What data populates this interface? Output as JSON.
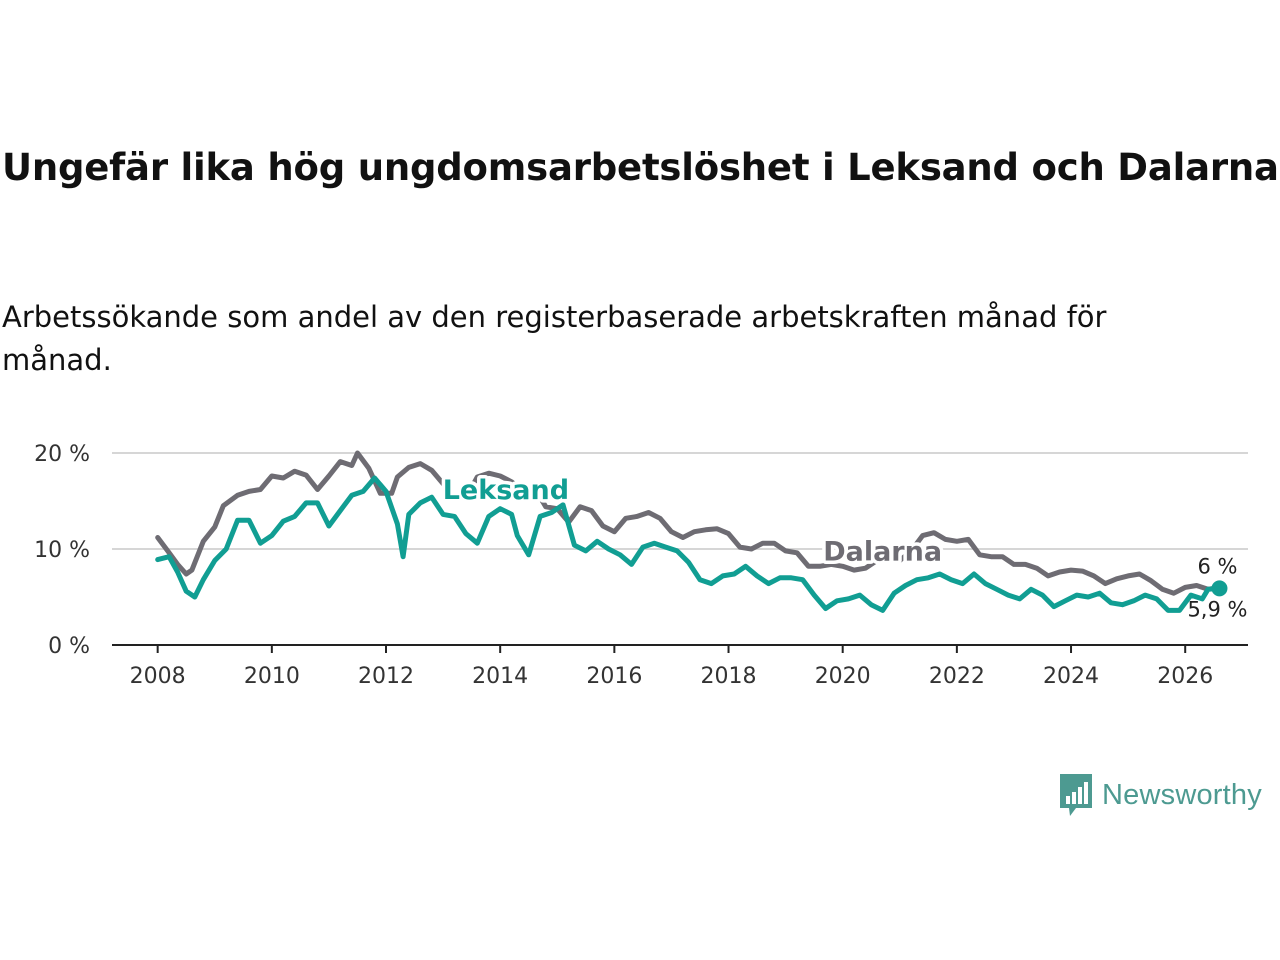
{
  "header": {
    "title": "Ungefär lika hög ungdomsarbetslöshet i Leksand och Dalarna",
    "subtitle": "Arbetssökande som andel av den registerbaserade arbetskraften månad för månad."
  },
  "brand": {
    "name": "Newsworthy",
    "color": "#4d9a91",
    "icon": "newsworthy-logo-icon"
  },
  "chart_data": {
    "type": "line",
    "title": "Ungefär lika hög ungdomsarbetslöshet i Leksand och Dalarna",
    "xlabel": "",
    "ylabel": "",
    "xlim": [
      2007.2,
      2027.1
    ],
    "ylim": [
      0,
      20
    ],
    "xticks": [
      2008,
      2010,
      2012,
      2014,
      2016,
      2018,
      2020,
      2022,
      2024,
      2026
    ],
    "xtick_labels": [
      "2008",
      "2010",
      "2012",
      "2014",
      "2016",
      "2018",
      "2020",
      "2022",
      "2024",
      "2026"
    ],
    "yticks": [
      0,
      10,
      20
    ],
    "ytick_labels": [
      "0 %",
      "10 %",
      "20 %"
    ],
    "grid": true,
    "series": [
      {
        "name": "Dalarna",
        "color": "#6e6c73",
        "end_label": "6 %",
        "points": [
          [
            2008.0,
            11.2
          ],
          [
            2008.2,
            9.6
          ],
          [
            2008.35,
            8.4
          ],
          [
            2008.5,
            7.4
          ],
          [
            2008.6,
            7.8
          ],
          [
            2008.8,
            10.8
          ],
          [
            2009.0,
            12.3
          ],
          [
            2009.15,
            14.5
          ],
          [
            2009.4,
            15.6
          ],
          [
            2009.6,
            16.0
          ],
          [
            2009.8,
            16.2
          ],
          [
            2010.0,
            17.6
          ],
          [
            2010.2,
            17.4
          ],
          [
            2010.4,
            18.1
          ],
          [
            2010.6,
            17.7
          ],
          [
            2010.8,
            16.2
          ],
          [
            2011.0,
            17.6
          ],
          [
            2011.2,
            19.1
          ],
          [
            2011.4,
            18.7
          ],
          [
            2011.5,
            20.0
          ],
          [
            2011.7,
            18.4
          ],
          [
            2011.9,
            15.8
          ],
          [
            2012.1,
            15.8
          ],
          [
            2012.2,
            17.5
          ],
          [
            2012.4,
            18.5
          ],
          [
            2012.6,
            18.9
          ],
          [
            2012.8,
            18.2
          ],
          [
            2013.0,
            16.8
          ],
          [
            2013.2,
            15.4
          ],
          [
            2013.4,
            15.3
          ],
          [
            2013.6,
            17.5
          ],
          [
            2013.8,
            17.9
          ],
          [
            2014.0,
            17.6
          ],
          [
            2014.2,
            17.0
          ],
          [
            2014.4,
            16.0
          ],
          [
            2014.6,
            16.4
          ],
          [
            2014.8,
            14.4
          ],
          [
            2015.0,
            14.2
          ],
          [
            2015.2,
            12.8
          ],
          [
            2015.4,
            14.4
          ],
          [
            2015.6,
            14.0
          ],
          [
            2015.8,
            12.4
          ],
          [
            2016.0,
            11.8
          ],
          [
            2016.2,
            13.2
          ],
          [
            2016.4,
            13.4
          ],
          [
            2016.6,
            13.8
          ],
          [
            2016.8,
            13.2
          ],
          [
            2017.0,
            11.8
          ],
          [
            2017.2,
            11.2
          ],
          [
            2017.4,
            11.8
          ],
          [
            2017.6,
            12.0
          ],
          [
            2017.8,
            12.1
          ],
          [
            2018.0,
            11.6
          ],
          [
            2018.2,
            10.2
          ],
          [
            2018.4,
            10.0
          ],
          [
            2018.6,
            10.6
          ],
          [
            2018.8,
            10.6
          ],
          [
            2019.0,
            9.8
          ],
          [
            2019.2,
            9.6
          ],
          [
            2019.4,
            8.2
          ],
          [
            2019.6,
            8.2
          ],
          [
            2019.8,
            8.4
          ],
          [
            2020.0,
            8.2
          ],
          [
            2020.2,
            7.8
          ],
          [
            2020.4,
            8.0
          ],
          [
            2020.6,
            8.8
          ],
          [
            2020.8,
            9.2
          ],
          [
            2021.0,
            8.8
          ],
          [
            2021.2,
            9.8
          ],
          [
            2021.4,
            11.4
          ],
          [
            2021.6,
            11.7
          ],
          [
            2021.8,
            11.0
          ],
          [
            2022.0,
            10.8
          ],
          [
            2022.2,
            11.0
          ],
          [
            2022.4,
            9.4
          ],
          [
            2022.6,
            9.2
          ],
          [
            2022.8,
            9.2
          ],
          [
            2023.0,
            8.4
          ],
          [
            2023.2,
            8.4
          ],
          [
            2023.4,
            8.0
          ],
          [
            2023.6,
            7.2
          ],
          [
            2023.8,
            7.6
          ],
          [
            2024.0,
            7.8
          ],
          [
            2024.2,
            7.7
          ],
          [
            2024.4,
            7.2
          ],
          [
            2024.6,
            6.4
          ],
          [
            2024.8,
            6.9
          ],
          [
            2025.0,
            7.2
          ],
          [
            2025.2,
            7.4
          ],
          [
            2025.4,
            6.7
          ],
          [
            2025.6,
            5.8
          ],
          [
            2025.8,
            5.4
          ],
          [
            2026.0,
            6.0
          ],
          [
            2026.2,
            6.2
          ],
          [
            2026.4,
            5.8
          ],
          [
            2026.6,
            6.0
          ]
        ]
      },
      {
        "name": "Leksand",
        "color": "#119e93",
        "end_label": "5,9 %",
        "points": [
          [
            2008.0,
            8.9
          ],
          [
            2008.2,
            9.2
          ],
          [
            2008.35,
            7.6
          ],
          [
            2008.5,
            5.6
          ],
          [
            2008.65,
            5.0
          ],
          [
            2008.8,
            6.8
          ],
          [
            2009.0,
            8.8
          ],
          [
            2009.2,
            10.0
          ],
          [
            2009.4,
            13.0
          ],
          [
            2009.6,
            13.0
          ],
          [
            2009.8,
            10.6
          ],
          [
            2010.0,
            11.4
          ],
          [
            2010.2,
            12.9
          ],
          [
            2010.4,
            13.4
          ],
          [
            2010.6,
            14.8
          ],
          [
            2010.8,
            14.8
          ],
          [
            2011.0,
            12.4
          ],
          [
            2011.2,
            14.0
          ],
          [
            2011.4,
            15.6
          ],
          [
            2011.6,
            16.0
          ],
          [
            2011.8,
            17.4
          ],
          [
            2012.0,
            16.0
          ],
          [
            2012.2,
            12.6
          ],
          [
            2012.3,
            9.2
          ],
          [
            2012.4,
            13.6
          ],
          [
            2012.6,
            14.8
          ],
          [
            2012.8,
            15.4
          ],
          [
            2013.0,
            13.6
          ],
          [
            2013.2,
            13.4
          ],
          [
            2013.4,
            11.6
          ],
          [
            2013.6,
            10.6
          ],
          [
            2013.8,
            13.4
          ],
          [
            2014.0,
            14.2
          ],
          [
            2014.2,
            13.6
          ],
          [
            2014.3,
            11.4
          ],
          [
            2014.5,
            9.4
          ],
          [
            2014.7,
            13.4
          ],
          [
            2014.9,
            13.8
          ],
          [
            2015.1,
            14.6
          ],
          [
            2015.3,
            10.4
          ],
          [
            2015.5,
            9.8
          ],
          [
            2015.7,
            10.8
          ],
          [
            2015.9,
            10.0
          ],
          [
            2016.1,
            9.4
          ],
          [
            2016.3,
            8.4
          ],
          [
            2016.5,
            10.2
          ],
          [
            2016.7,
            10.6
          ],
          [
            2016.9,
            10.2
          ],
          [
            2017.1,
            9.8
          ],
          [
            2017.3,
            8.6
          ],
          [
            2017.5,
            6.8
          ],
          [
            2017.7,
            6.4
          ],
          [
            2017.9,
            7.2
          ],
          [
            2018.1,
            7.4
          ],
          [
            2018.3,
            8.2
          ],
          [
            2018.5,
            7.2
          ],
          [
            2018.7,
            6.4
          ],
          [
            2018.9,
            7.0
          ],
          [
            2019.1,
            7.0
          ],
          [
            2019.3,
            6.8
          ],
          [
            2019.5,
            5.2
          ],
          [
            2019.7,
            3.8
          ],
          [
            2019.9,
            4.6
          ],
          [
            2020.1,
            4.8
          ],
          [
            2020.3,
            5.2
          ],
          [
            2020.5,
            4.2
          ],
          [
            2020.7,
            3.6
          ],
          [
            2020.9,
            5.4
          ],
          [
            2021.1,
            6.2
          ],
          [
            2021.3,
            6.8
          ],
          [
            2021.5,
            7.0
          ],
          [
            2021.7,
            7.4
          ],
          [
            2021.9,
            6.8
          ],
          [
            2022.1,
            6.4
          ],
          [
            2022.3,
            7.4
          ],
          [
            2022.5,
            6.4
          ],
          [
            2022.7,
            5.8
          ],
          [
            2022.9,
            5.2
          ],
          [
            2023.1,
            4.8
          ],
          [
            2023.3,
            5.8
          ],
          [
            2023.5,
            5.2
          ],
          [
            2023.7,
            4.0
          ],
          [
            2023.9,
            4.6
          ],
          [
            2024.1,
            5.2
          ],
          [
            2024.3,
            5.0
          ],
          [
            2024.5,
            5.4
          ],
          [
            2024.7,
            4.4
          ],
          [
            2024.9,
            4.2
          ],
          [
            2025.1,
            4.6
          ],
          [
            2025.3,
            5.2
          ],
          [
            2025.5,
            4.8
          ],
          [
            2025.7,
            3.6
          ],
          [
            2025.9,
            3.6
          ],
          [
            2026.1,
            5.2
          ],
          [
            2026.3,
            4.8
          ],
          [
            2026.4,
            5.8
          ],
          [
            2026.6,
            5.9
          ]
        ]
      }
    ],
    "annotations": [
      {
        "text": "Leksand",
        "series": "Leksand",
        "at": [
          2014.1,
          15.2
        ]
      },
      {
        "text": "Dalarna",
        "series": "Dalarna",
        "at": [
          2020.7,
          8.8
        ]
      }
    ]
  }
}
